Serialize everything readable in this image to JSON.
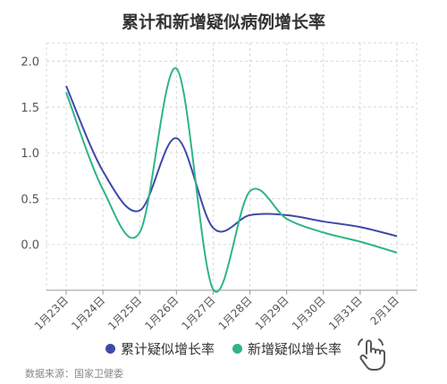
{
  "chart_data": {
    "type": "line",
    "title": "累计和新增疑似病例增长率",
    "x": [
      "1月23日",
      "1月24日",
      "1月25日",
      "1月26日",
      "1月27日",
      "1月28日",
      "1月29日",
      "1月30日",
      "1月31日",
      "2月1日"
    ],
    "ylim": [
      -0.5,
      2.2
    ],
    "yticks": [
      "2.0",
      "1.5",
      "1.0",
      "0.5",
      "0.0"
    ],
    "ytick_values": [
      2.0,
      1.5,
      1.0,
      0.5,
      0.0
    ],
    "series": [
      {
        "name": "累计疑似增长率",
        "color": "#3f4aa8",
        "values": [
          1.73,
          0.8,
          0.37,
          1.16,
          0.18,
          0.32,
          0.32,
          0.25,
          0.19,
          0.09
        ]
      },
      {
        "name": "新增疑似增长率",
        "color": "#2fb48a",
        "values": [
          1.66,
          0.6,
          0.13,
          1.92,
          -0.49,
          0.58,
          0.28,
          0.13,
          0.03,
          -0.09
        ]
      }
    ],
    "grid": true,
    "legend_position": "bottom"
  },
  "source_text": "数据来源：国家卫健委",
  "icons": {
    "hand": "hand-pointer-icon"
  }
}
